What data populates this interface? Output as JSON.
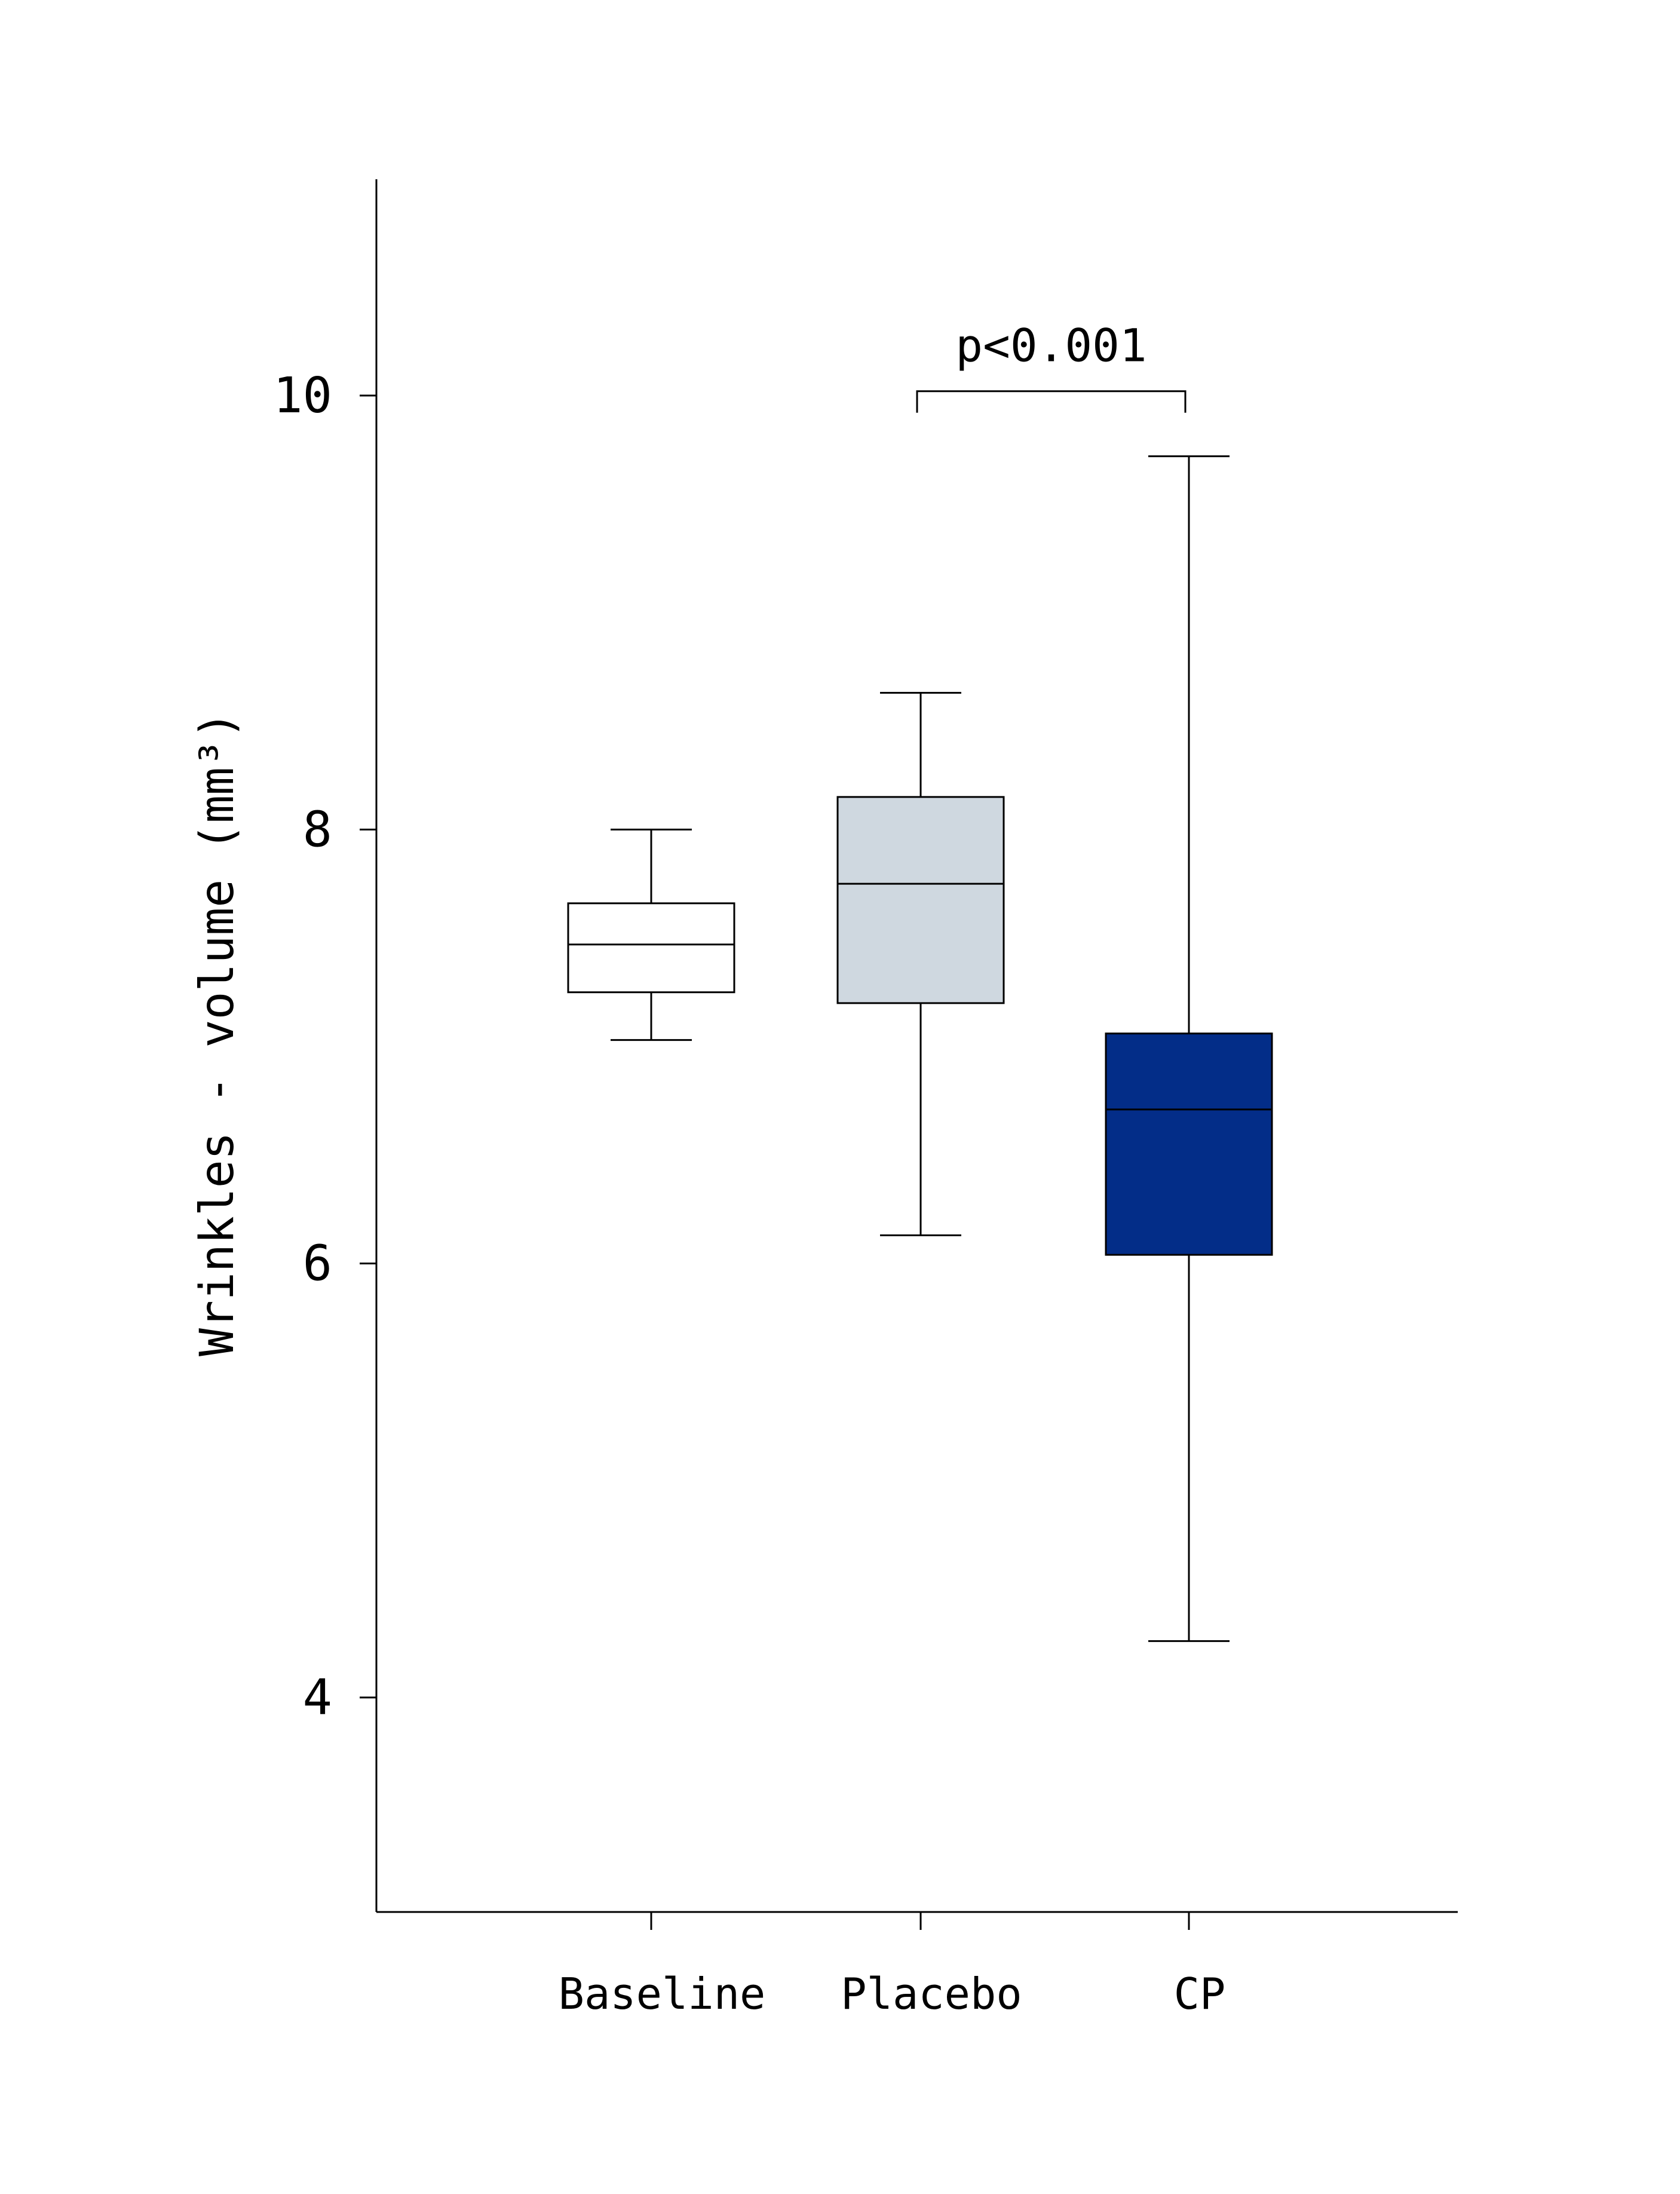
{
  "chart_data": {
    "type": "box",
    "title": "",
    "xlabel": "",
    "ylabel": "Wrinkles - volume (mm³)",
    "ylim": [
      3,
      11
    ],
    "yticks": [
      4,
      6,
      8,
      10
    ],
    "categories": [
      "Baseline",
      "Placebo",
      "CP"
    ],
    "series": [
      {
        "category": "Baseline",
        "whisker_low": 7.03,
        "q1": 7.25,
        "median": 7.47,
        "q3": 7.66,
        "whisker_high": 8.0,
        "fill": "#ffffff"
      },
      {
        "category": "Placebo",
        "whisker_low": 6.13,
        "q1": 7.2,
        "median": 7.75,
        "q3": 8.15,
        "whisker_high": 8.63,
        "fill": "#cfd8e0"
      },
      {
        "category": "CP",
        "whisker_low": 4.26,
        "q1": 6.04,
        "median": 6.71,
        "q3": 7.06,
        "whisker_high": 9.72,
        "fill": "#032d88"
      }
    ],
    "annotations": [
      {
        "text": "p<0.001",
        "from": "Placebo",
        "to": "CP",
        "y": 10.02
      }
    ],
    "grid": false,
    "legend": "none"
  }
}
